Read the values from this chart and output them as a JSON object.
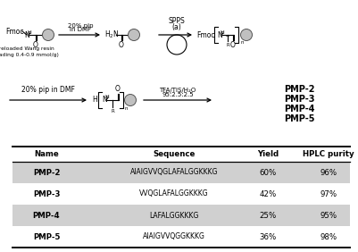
{
  "table_headers": [
    "Name",
    "Sequence",
    "Yield",
    "HPLC purity"
  ],
  "table_rows": [
    [
      "PMP-2",
      "AIAIGVVQGLAFALGGKKKG",
      "60%",
      "96%"
    ],
    [
      "PMP-3",
      "VVQGLAFALGGKKKG",
      "42%",
      "97%"
    ],
    [
      "PMP-4",
      "LAFALGGKKKG",
      "25%",
      "95%"
    ],
    [
      "PMP-5",
      "AIAIGVVQGGKKKG",
      "36%",
      "98%"
    ]
  ],
  "shaded_rows": [
    0,
    2
  ],
  "row_shade_color": "#d0d0d0",
  "bg_color": "#ffffff",
  "preloaded_label": "preloaded Wang resin\n(loading 0.4-0.9 mmol/g)",
  "step1_label": "20% pip\nin DMF",
  "spps_label": "SPPS\n(a)",
  "step2_label": "20% pip in DMF",
  "cleavage_label1": "TFA/TIS/H₂O",
  "cleavage_label2": "95:2.5:2.5",
  "products": [
    "PMP-2",
    "PMP-3",
    "PMP-4",
    "PMP-5"
  ],
  "fmoc_label": "Fmoc",
  "figure_width": 4.01,
  "figure_height": 2.82,
  "dpi": 100
}
